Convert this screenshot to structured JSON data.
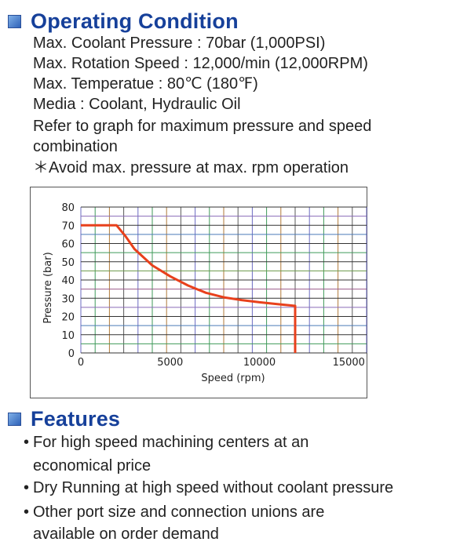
{
  "operating": {
    "title": "Operating Condition",
    "lines": [
      "Max. Coolant Pressure : 70bar (1,000PSI)",
      "Max. Rotation Speed : 12,000/min (12,000RPM)",
      "Max. Temperatue : 80℃ (180℉)",
      "Media : Coolant, Hydraulic Oil",
      "Refer to graph for maximum pressure and speed",
      "combination",
      "＊Avoid max. pressure at max. rpm operation"
    ]
  },
  "chart_data": {
    "type": "line",
    "title": "",
    "xlabel": "Speed (rpm)",
    "ylabel": "Pressure (bar)",
    "xlim": [
      0,
      16000
    ],
    "ylim": [
      0,
      80
    ],
    "x_ticks": [
      0,
      5000,
      10000,
      15000
    ],
    "x_tick_labels": [
      "0",
      "5000",
      "10000",
      "15000"
    ],
    "y_ticks": [
      0,
      10,
      20,
      30,
      40,
      50,
      60,
      70,
      80
    ],
    "y_tick_labels": [
      "0",
      "10",
      "20",
      "30",
      "40",
      "50",
      "60",
      "70",
      "80"
    ],
    "grid": true,
    "series": [
      {
        "color": "#e8401c",
        "points": [
          [
            0,
            70
          ],
          [
            2000,
            70
          ],
          [
            2500,
            64
          ],
          [
            3000,
            57
          ],
          [
            4000,
            48
          ],
          [
            5000,
            42
          ],
          [
            6000,
            37
          ],
          [
            7000,
            33
          ],
          [
            8000,
            30.5
          ],
          [
            9000,
            29
          ],
          [
            10000,
            27.8
          ],
          [
            11000,
            26.8
          ],
          [
            12000,
            25.8
          ],
          [
            12000,
            0
          ]
        ]
      }
    ]
  },
  "features": {
    "title": "Features",
    "bullet_glyph": "•",
    "items": [
      {
        "lines": [
          "For high speed machining centers at an",
          "economical price"
        ]
      },
      {
        "lines": [
          "Dry Running at high speed without coolant pressure"
        ]
      },
      {
        "lines": [
          "Other port size and connection unions are",
          "available on order demand"
        ]
      }
    ]
  }
}
